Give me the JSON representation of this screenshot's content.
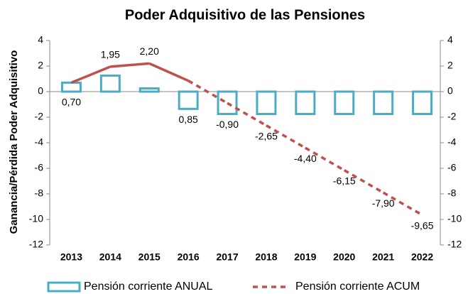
{
  "chart_data": {
    "type": "bar_line",
    "title": "Poder Adquisitivo de las Pensiones",
    "ylabel": "Ganancia/Pérdida Poder Adquisitivo",
    "categories": [
      "2013",
      "2014",
      "2015",
      "2016",
      "2017",
      "2018",
      "2019",
      "2020",
      "2021",
      "2022"
    ],
    "series": [
      {
        "name": "Pensión corriente ANUAL",
        "type": "bar",
        "color": "#4bacc6",
        "values": [
          0.7,
          1.25,
          0.25,
          -1.35,
          -1.75,
          -1.75,
          -1.75,
          -1.75,
          -1.75,
          -1.75
        ]
      },
      {
        "name": "Pensión corriente ACUM",
        "type": "line",
        "color": "#c0504d",
        "dash_start": "2016",
        "values": [
          0.7,
          1.95,
          2.2,
          0.85,
          -0.9,
          -2.65,
          -4.4,
          -6.15,
          -7.9,
          -9.65
        ],
        "value_labels": [
          "0,70",
          "1,95",
          "2,20",
          "0,85",
          "-0,90",
          "-2,65",
          "-4,40",
          "-6,15",
          "-7,90",
          "-9,65"
        ]
      }
    ],
    "ylim": [
      -12,
      4
    ],
    "yticks": [
      -12,
      -10,
      -8,
      -6,
      -4,
      -2,
      0,
      2,
      4
    ],
    "y2lim": [
      -12,
      4
    ],
    "y2ticks": [
      -12,
      -10,
      -8,
      -6,
      -4,
      -2,
      0,
      2,
      4
    ],
    "legend": "bottom"
  }
}
